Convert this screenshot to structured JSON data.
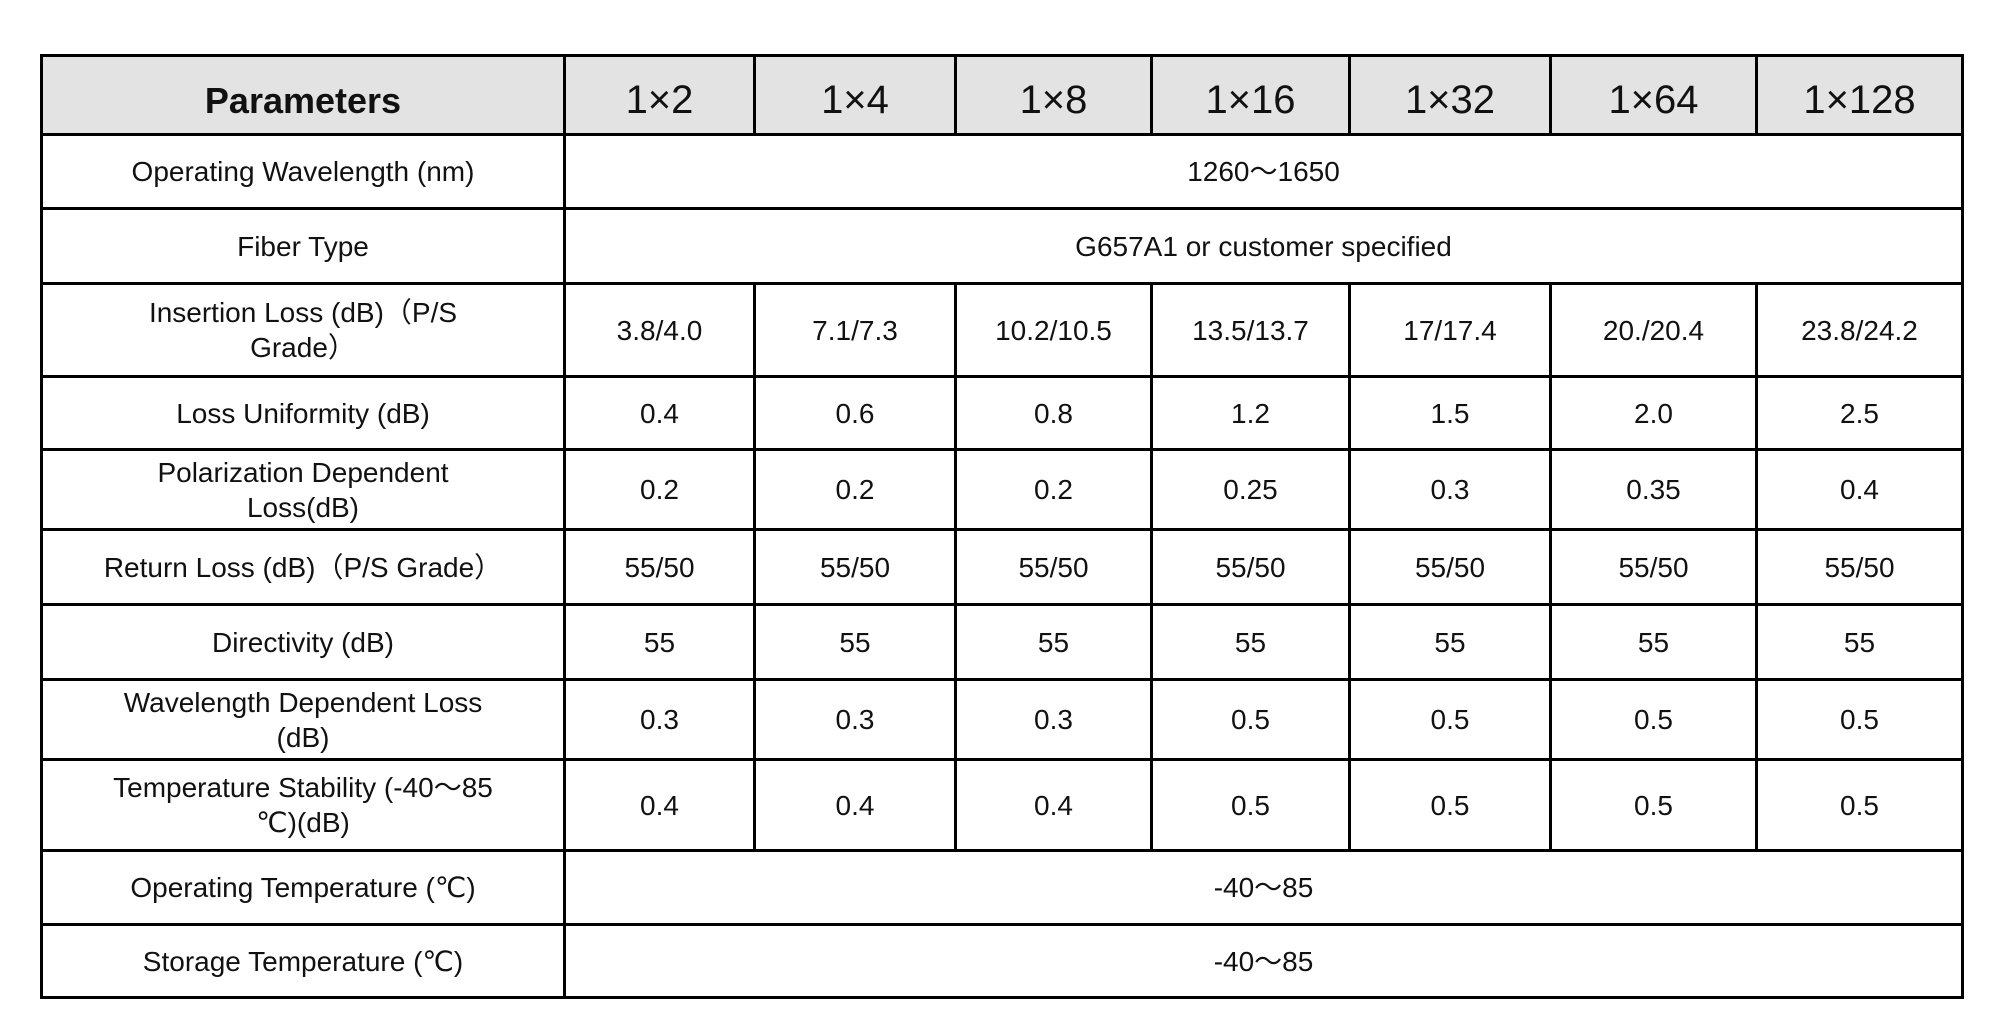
{
  "table": {
    "header": [
      "Parameters",
      "1×2",
      "1×4",
      "1×8",
      "1×16",
      "1×32",
      "1×64",
      "1×128"
    ],
    "rows": [
      [
        "Operating Wavelength (nm)",
        "1260～1650"
      ],
      [
        "Fiber Type",
        "G657A1 or customer specified"
      ],
      [
        "Insertion Loss (dB)（P/S Grade）",
        "3.8/4.0",
        "7.1/7.3",
        "10.2/10.5",
        "13.5/13.7",
        "17/17.4",
        "20./20.4",
        "23.8/24.2"
      ],
      [
        "Loss Uniformity  (dB)",
        "0.4",
        "0.6",
        "0.8",
        "1.2",
        "1.5",
        "2.0",
        "2.5"
      ],
      [
        "Polarization Dependent Loss(dB)",
        "0.2",
        "0.2",
        "0.2",
        "0.25",
        "0.3",
        "0.35",
        "0.4"
      ],
      [
        "Return Loss (dB)（P/S Grade）",
        "55/50",
        "55/50",
        "55/50",
        "55/50",
        "55/50",
        "55/50",
        "55/50"
      ],
      [
        "Directivity (dB)",
        "55",
        "55",
        "55",
        "55",
        "55",
        "55",
        "55"
      ],
      [
        "Wavelength Dependent Loss (dB)",
        "0.3",
        "0.3",
        "0.3",
        "0.5",
        "0.5",
        "0.5",
        "0.5"
      ],
      [
        "Temperature Stability (-40～85 ℃)(dB)",
        "0.4",
        "0.4",
        "0.4",
        "0.5",
        "0.5",
        "0.5",
        "0.5"
      ],
      [
        "Operating Temperature (℃)",
        "-40～85"
      ],
      [
        "Storage Temperature (℃)",
        "-40～85"
      ]
    ]
  }
}
